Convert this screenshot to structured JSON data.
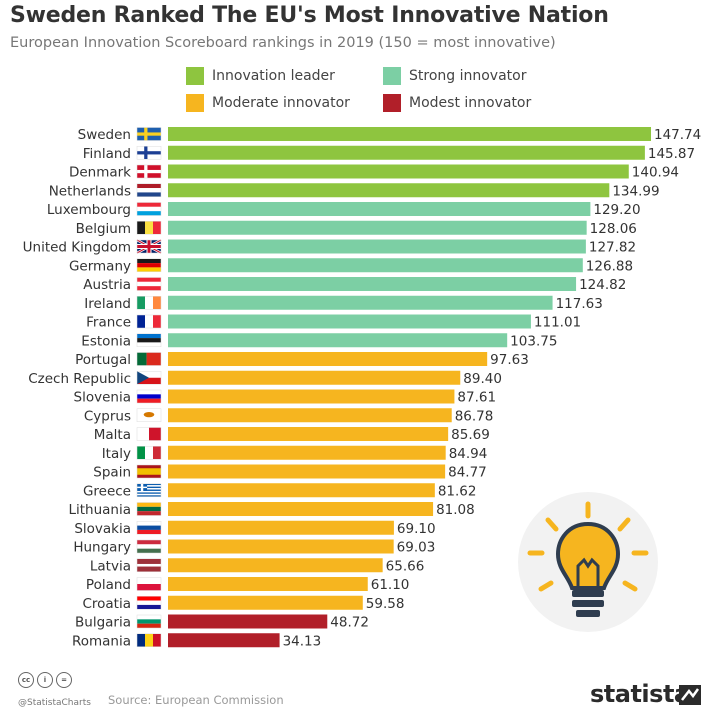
{
  "header": {
    "title": "Sweden Ranked The EU's Most Innovative Nation",
    "subtitle": "European Innovation Scoreboard rankings in 2019 (150 = most innovative)"
  },
  "legend": [
    {
      "key": "leader",
      "label": "Innovation leader",
      "color": "#8ec53f"
    },
    {
      "key": "strong",
      "label": "Strong innovator",
      "color": "#7ccfa4"
    },
    {
      "key": "moderate",
      "label": "Moderate innovator",
      "color": "#f6b51f"
    },
    {
      "key": "modest",
      "label": "Modest innovator",
      "color": "#b11f29"
    }
  ],
  "chart_data": {
    "type": "bar",
    "orientation": "horizontal",
    "title": "Sweden Ranked The EU's Most Innovative Nation",
    "subtitle": "European Innovation Scoreboard rankings in 2019 (150 = most innovative)",
    "xlim": [
      0,
      150
    ],
    "grid": false,
    "categories": [
      "Sweden",
      "Finland",
      "Denmark",
      "Netherlands",
      "Luxembourg",
      "Belgium",
      "United Kingdom",
      "Germany",
      "Austria",
      "Ireland",
      "France",
      "Estonia",
      "Portugal",
      "Czech Republic",
      "Slovenia",
      "Cyprus",
      "Malta",
      "Italy",
      "Spain",
      "Greece",
      "Lithuania",
      "Slovakia",
      "Hungary",
      "Latvia",
      "Poland",
      "Croatia",
      "Bulgaria",
      "Romania"
    ],
    "values": [
      147.74,
      145.87,
      140.94,
      134.99,
      129.2,
      128.06,
      127.82,
      126.88,
      124.82,
      117.63,
      111.01,
      103.75,
      97.63,
      89.4,
      87.61,
      86.78,
      85.69,
      84.94,
      84.77,
      81.62,
      81.08,
      69.1,
      69.03,
      65.66,
      61.1,
      59.58,
      48.72,
      34.13
    ],
    "labels": [
      "147.74",
      "145.87",
      "140.94",
      "134.99",
      "129.20",
      "128.06",
      "127.82",
      "126.88",
      "124.82",
      "117.63",
      "111.01",
      "103.75",
      "97.63",
      "89.40",
      "87.61",
      "86.78",
      "85.69",
      "84.94",
      "84.77",
      "81.62",
      "81.08",
      "69.10",
      "69.03",
      "65.66",
      "61.10",
      "59.58",
      "48.72",
      "34.13"
    ],
    "groups": [
      "leader",
      "leader",
      "leader",
      "leader",
      "strong",
      "strong",
      "strong",
      "strong",
      "strong",
      "strong",
      "strong",
      "strong",
      "moderate",
      "moderate",
      "moderate",
      "moderate",
      "moderate",
      "moderate",
      "moderate",
      "moderate",
      "moderate",
      "moderate",
      "moderate",
      "moderate",
      "moderate",
      "moderate",
      "modest",
      "modest"
    ]
  },
  "footer": {
    "cc_icons": [
      "cc",
      "i",
      "="
    ],
    "handle": "@StatistaCharts",
    "source": "Source: European Commission",
    "brand": "statista"
  },
  "icons": {
    "license": "creative-commons-icon",
    "brand": "statista-logo-icon",
    "illustration": "lightbulb-icon"
  }
}
